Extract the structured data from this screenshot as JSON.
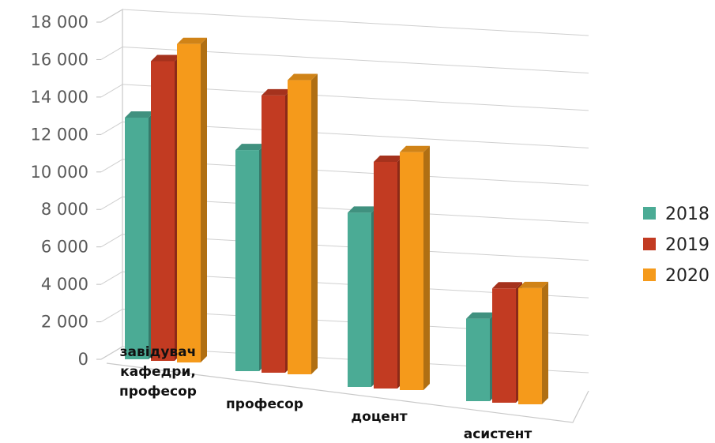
{
  "chart_data": {
    "type": "bar",
    "style": "3d-clustered-column",
    "categories": [
      [
        "завідувач",
        "кафедри,",
        "професор"
      ],
      [
        "професор"
      ],
      [
        "доцент"
      ],
      [
        "асистент"
      ]
    ],
    "series": [
      {
        "name": "2018",
        "color": "#4bab95",
        "values": [
          12900,
          11800,
          9300,
          4400
        ]
      },
      {
        "name": "2019",
        "color": "#c23b22",
        "values": [
          16000,
          14800,
          12100,
          6100
        ]
      },
      {
        "name": "2020",
        "color": "#f59a1b",
        "values": [
          17000,
          15700,
          12700,
          6200
        ]
      }
    ],
    "yticks": [
      "0",
      "2 000",
      "4 000",
      "6 000",
      "8 000",
      "10 000",
      "12 000",
      "14 000",
      "16 000",
      "18 000"
    ],
    "ylim": [
      0,
      18000
    ],
    "grid": true,
    "legend_position": "right"
  }
}
